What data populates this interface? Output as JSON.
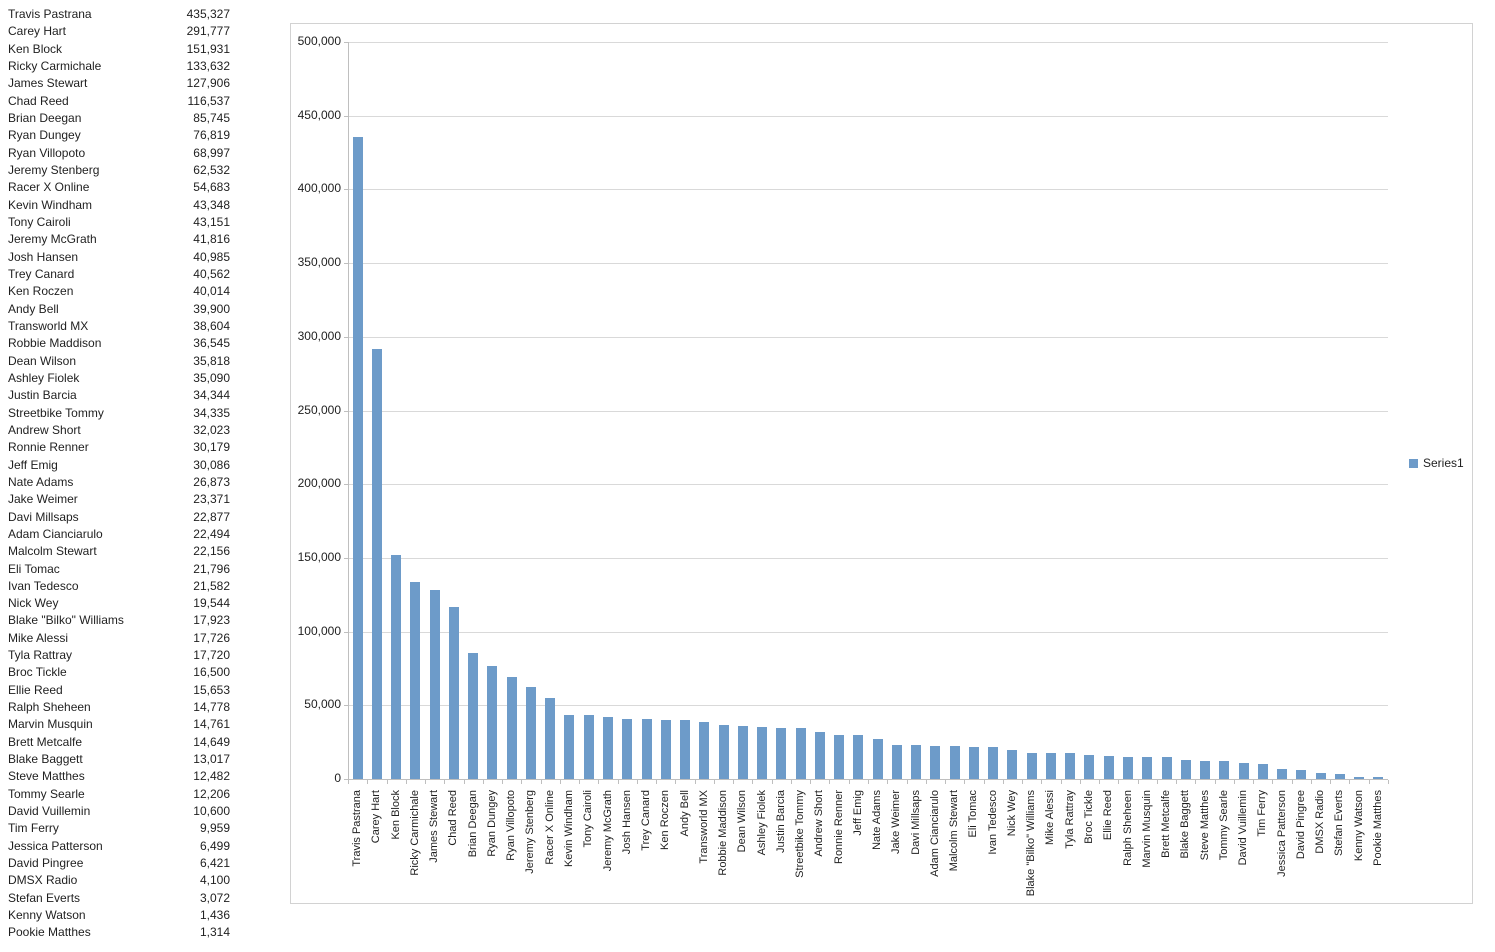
{
  "chart_data": {
    "type": "bar",
    "title": "",
    "series_name": "Series1",
    "categories": [
      "Travis Pastrana",
      "Carey Hart",
      "Ken Block",
      "Ricky Carmichale",
      "James Stewart",
      "Chad Reed",
      "Brian Deegan",
      "Ryan Dungey",
      "Ryan Villopoto",
      "Jeremy Stenberg",
      "Racer X Online",
      "Kevin Windham",
      "Tony Cairoli",
      "Jeremy McGrath",
      "Josh Hansen",
      "Trey Canard",
      "Ken Roczen",
      "Andy Bell",
      "Transworld MX",
      "Robbie Maddison",
      "Dean Wilson",
      "Ashley Fiolek",
      "Justin Barcia",
      "Streetbike Tommy",
      "Andrew Short",
      "Ronnie Renner",
      "Jeff Emig",
      "Nate Adams",
      "Jake Weimer",
      "Davi Millsaps",
      "Adam Cianciarulo",
      "Malcolm Stewart",
      "Eli Tomac",
      "Ivan Tedesco",
      "Nick Wey",
      "Blake \"Bilko\" Williams",
      "Mike Alessi",
      "Tyla Rattray",
      "Broc Tickle",
      "Ellie Reed",
      "Ralph Sheheen",
      "Marvin Musquin",
      "Brett Metcalfe",
      "Blake Baggett",
      "Steve Matthes",
      "Tommy Searle",
      "David Vuillemin",
      "Tim Ferry",
      "Jessica Patterson",
      "David Pingree",
      "DMSX Radio",
      "Stefan Everts",
      "Kenny Watson",
      "Pookie Matthes"
    ],
    "values": [
      435327,
      291777,
      151931,
      133632,
      127906,
      116537,
      85745,
      76819,
      68997,
      62532,
      54683,
      43348,
      43151,
      41816,
      40985,
      40562,
      40014,
      39900,
      38604,
      36545,
      35818,
      35090,
      34344,
      34335,
      32023,
      30179,
      30086,
      26873,
      23371,
      22877,
      22494,
      22156,
      21796,
      21582,
      19544,
      17923,
      17726,
      17720,
      16500,
      15653,
      14778,
      14761,
      14649,
      13017,
      12482,
      12206,
      10600,
      9959,
      6499,
      6421,
      4100,
      3072,
      1436,
      1314
    ],
    "ylim": [
      0,
      500000
    ],
    "ytick_step": 50000,
    "grid": true,
    "legend_position": "right",
    "colors": {
      "bar": "#6D9BC9",
      "gridline": "#D9D9D9",
      "axis": "#BFBFBF",
      "text": "#1F1F1F",
      "frame_border": "#D2D2D2"
    }
  }
}
